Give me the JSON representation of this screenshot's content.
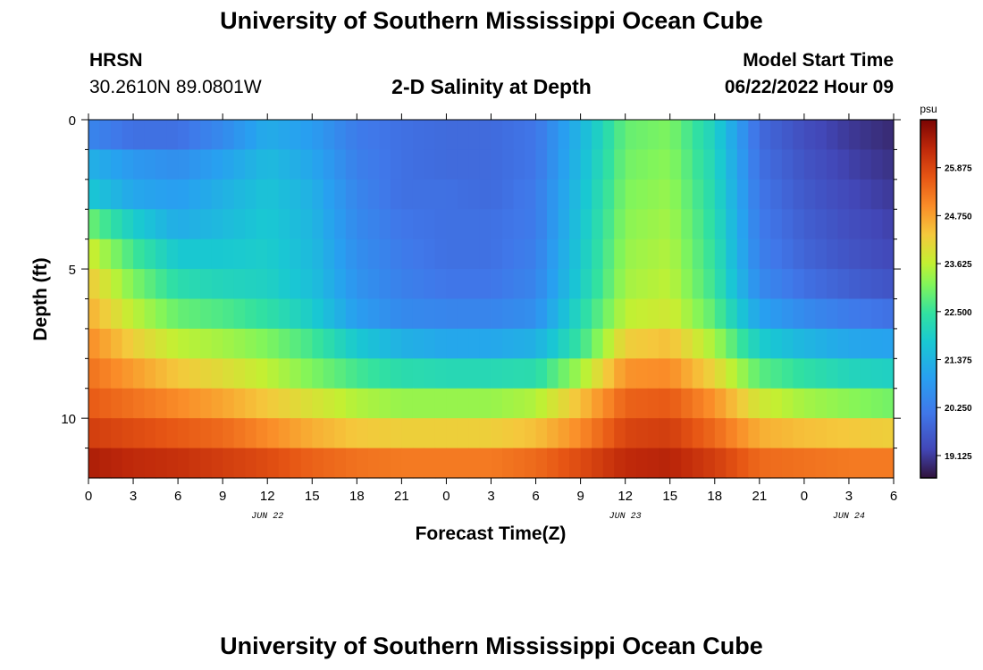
{
  "header": {
    "title": "University of Southern Mississippi Ocean Cube",
    "station": "HRSN",
    "coords": "30.2610N  89.0801W",
    "subtitle": "2-D Salinity at Depth",
    "model_start_label": "Model Start Time",
    "model_start_value": "06/22/2022 Hour 09"
  },
  "footer": {
    "title": "University of Southern Mississippi Ocean Cube"
  },
  "chart_data": {
    "type": "heatmap",
    "title": "2-D Salinity at Depth",
    "xlabel": "Forecast Time(Z)",
    "ylabel": "Depth (ft)",
    "x_tick_labels": [
      "0",
      "3",
      "6",
      "9",
      "12",
      "15",
      "18",
      "21",
      "0",
      "3",
      "6",
      "9",
      "12",
      "15",
      "18",
      "21",
      "0",
      "3",
      "6"
    ],
    "x_range_hours": [
      0,
      54
    ],
    "date_labels": [
      {
        "text": "JUN 22",
        "hour": 12
      },
      {
        "text": "JUN 23",
        "hour": 36
      },
      {
        "text": "JUN 24",
        "hour": 51
      }
    ],
    "y_tick_labels": [
      "0",
      "5",
      "10"
    ],
    "y_tick_values": [
      0,
      5,
      10
    ],
    "y_range_ft": [
      0,
      12
    ],
    "depth_bins_ft": [
      0.5,
      1.5,
      2.5,
      3.5,
      4.5,
      5.5,
      6.5,
      7.5,
      8.5,
      9.5,
      10.5,
      11.5
    ],
    "colorbar": {
      "unit": "psu",
      "min": 18.6,
      "max": 27.0,
      "tick_labels": [
        "25.875",
        "24.750",
        "23.625",
        "22.500",
        "21.375",
        "20.250",
        "19.125"
      ],
      "tick_values": [
        25.875,
        24.75,
        23.625,
        22.5,
        21.375,
        20.25,
        19.125
      ]
    },
    "salinity_rows_psu": [
      {
        "depth_ft": 0.5,
        "hours": [
          0,
          3,
          6,
          9,
          12,
          15,
          18,
          21,
          24,
          27,
          30,
          33,
          36,
          39,
          42,
          45,
          48,
          51,
          54
        ],
        "values": [
          20.4,
          20.0,
          20.0,
          20.5,
          21.2,
          20.9,
          20.2,
          20.0,
          19.9,
          19.9,
          20.1,
          21.4,
          22.9,
          23.1,
          22.0,
          19.9,
          19.4,
          19.1,
          18.9
        ]
      },
      {
        "depth_ft": 1.5,
        "hours": [
          0,
          3,
          6,
          9,
          12,
          15,
          18,
          21,
          24,
          27,
          30,
          33,
          36,
          39,
          42,
          45,
          48,
          51,
          54
        ],
        "values": [
          21.3,
          20.8,
          20.6,
          21.0,
          21.5,
          21.1,
          20.3,
          20.0,
          19.9,
          19.9,
          20.1,
          21.5,
          23.0,
          23.2,
          22.1,
          20.0,
          19.5,
          19.2,
          19.0
        ]
      },
      {
        "depth_ft": 2.5,
        "hours": [
          0,
          3,
          6,
          9,
          12,
          15,
          18,
          21,
          24,
          27,
          30,
          33,
          36,
          39,
          42,
          45,
          48,
          51,
          54
        ],
        "values": [
          21.8,
          21.1,
          20.9,
          21.3,
          21.7,
          21.3,
          20.4,
          20.0,
          20.0,
          19.9,
          20.2,
          21.6,
          23.1,
          23.3,
          22.2,
          20.1,
          19.6,
          19.3,
          19.1
        ]
      },
      {
        "depth_ft": 3.5,
        "hours": [
          0,
          3,
          6,
          9,
          12,
          15,
          18,
          21,
          24,
          27,
          30,
          33,
          36,
          39,
          42,
          45,
          48,
          51,
          54
        ],
        "values": [
          23.0,
          21.9,
          21.2,
          21.5,
          21.8,
          21.4,
          20.5,
          20.1,
          20.0,
          20.0,
          20.2,
          21.7,
          23.2,
          23.4,
          22.3,
          20.2,
          19.7,
          19.4,
          19.2
        ]
      },
      {
        "depth_ft": 4.5,
        "hours": [
          0,
          3,
          6,
          9,
          12,
          15,
          18,
          21,
          24,
          27,
          30,
          33,
          36,
          39,
          42,
          45,
          48,
          51,
          54
        ],
        "values": [
          23.8,
          22.6,
          21.8,
          21.8,
          21.9,
          21.5,
          20.6,
          20.2,
          20.0,
          20.0,
          20.3,
          21.8,
          23.3,
          23.5,
          22.4,
          20.3,
          19.8,
          19.5,
          19.3
        ]
      },
      {
        "depth_ft": 5.5,
        "hours": [
          0,
          3,
          6,
          9,
          12,
          15,
          18,
          21,
          24,
          27,
          30,
          33,
          36,
          39,
          42,
          45,
          48,
          51,
          54
        ],
        "values": [
          24.3,
          23.1,
          22.3,
          22.1,
          22.0,
          21.6,
          20.7,
          20.3,
          20.1,
          20.1,
          20.4,
          21.9,
          23.4,
          23.6,
          22.5,
          20.5,
          20.0,
          19.7,
          19.5
        ]
      },
      {
        "depth_ft": 6.5,
        "hours": [
          0,
          3,
          6,
          9,
          12,
          15,
          18,
          21,
          24,
          27,
          30,
          33,
          36,
          39,
          42,
          45,
          48,
          51,
          54
        ],
        "values": [
          24.6,
          23.6,
          22.9,
          22.7,
          22.4,
          21.9,
          20.9,
          20.5,
          20.4,
          20.4,
          20.6,
          22.2,
          23.6,
          23.8,
          22.8,
          21.0,
          20.5,
          20.2,
          20.0
        ]
      },
      {
        "depth_ft": 7.5,
        "hours": [
          0,
          3,
          6,
          9,
          12,
          15,
          18,
          21,
          24,
          27,
          30,
          33,
          36,
          39,
          42,
          45,
          48,
          51,
          54
        ],
        "values": [
          25.0,
          24.2,
          23.6,
          23.4,
          23.1,
          22.6,
          21.8,
          21.3,
          21.1,
          21.1,
          21.3,
          22.5,
          24.2,
          24.4,
          23.4,
          21.9,
          21.4,
          21.1,
          21.0
        ]
      },
      {
        "depth_ft": 8.5,
        "hours": [
          0,
          3,
          6,
          9,
          12,
          15,
          18,
          21,
          24,
          27,
          30,
          33,
          36,
          39,
          42,
          45,
          48,
          51,
          54
        ],
        "values": [
          25.3,
          24.8,
          24.3,
          24.0,
          23.6,
          23.1,
          22.6,
          22.3,
          22.2,
          22.2,
          22.3,
          23.4,
          24.9,
          25.0,
          24.1,
          22.8,
          22.4,
          22.1,
          22.0
        ]
      },
      {
        "depth_ft": 9.5,
        "hours": [
          0,
          3,
          6,
          9,
          12,
          15,
          18,
          21,
          24,
          27,
          30,
          33,
          36,
          39,
          42,
          45,
          48,
          51,
          54
        ],
        "values": [
          25.6,
          25.3,
          25.0,
          24.7,
          24.3,
          23.9,
          23.5,
          23.3,
          23.3,
          23.3,
          23.5,
          24.4,
          25.5,
          25.6,
          24.9,
          23.8,
          23.4,
          23.2,
          23.0
        ]
      },
      {
        "depth_ft": 10.5,
        "hours": [
          0,
          3,
          6,
          9,
          12,
          15,
          18,
          21,
          24,
          27,
          30,
          33,
          36,
          39,
          42,
          45,
          48,
          51,
          54
        ],
        "values": [
          26.0,
          25.8,
          25.6,
          25.4,
          25.0,
          24.6,
          24.3,
          24.2,
          24.2,
          24.2,
          24.4,
          25.0,
          25.9,
          26.0,
          25.4,
          24.6,
          24.4,
          24.3,
          24.2
        ]
      },
      {
        "depth_ft": 11.5,
        "hours": [
          0,
          3,
          6,
          9,
          12,
          15,
          18,
          21,
          24,
          27,
          30,
          33,
          36,
          39,
          42,
          45,
          48,
          51,
          54
        ],
        "values": [
          26.5,
          26.3,
          26.2,
          26.0,
          25.8,
          25.5,
          25.3,
          25.2,
          25.2,
          25.2,
          25.4,
          25.8,
          26.3,
          26.4,
          26.0,
          25.4,
          25.3,
          25.2,
          25.2
        ]
      }
    ]
  }
}
